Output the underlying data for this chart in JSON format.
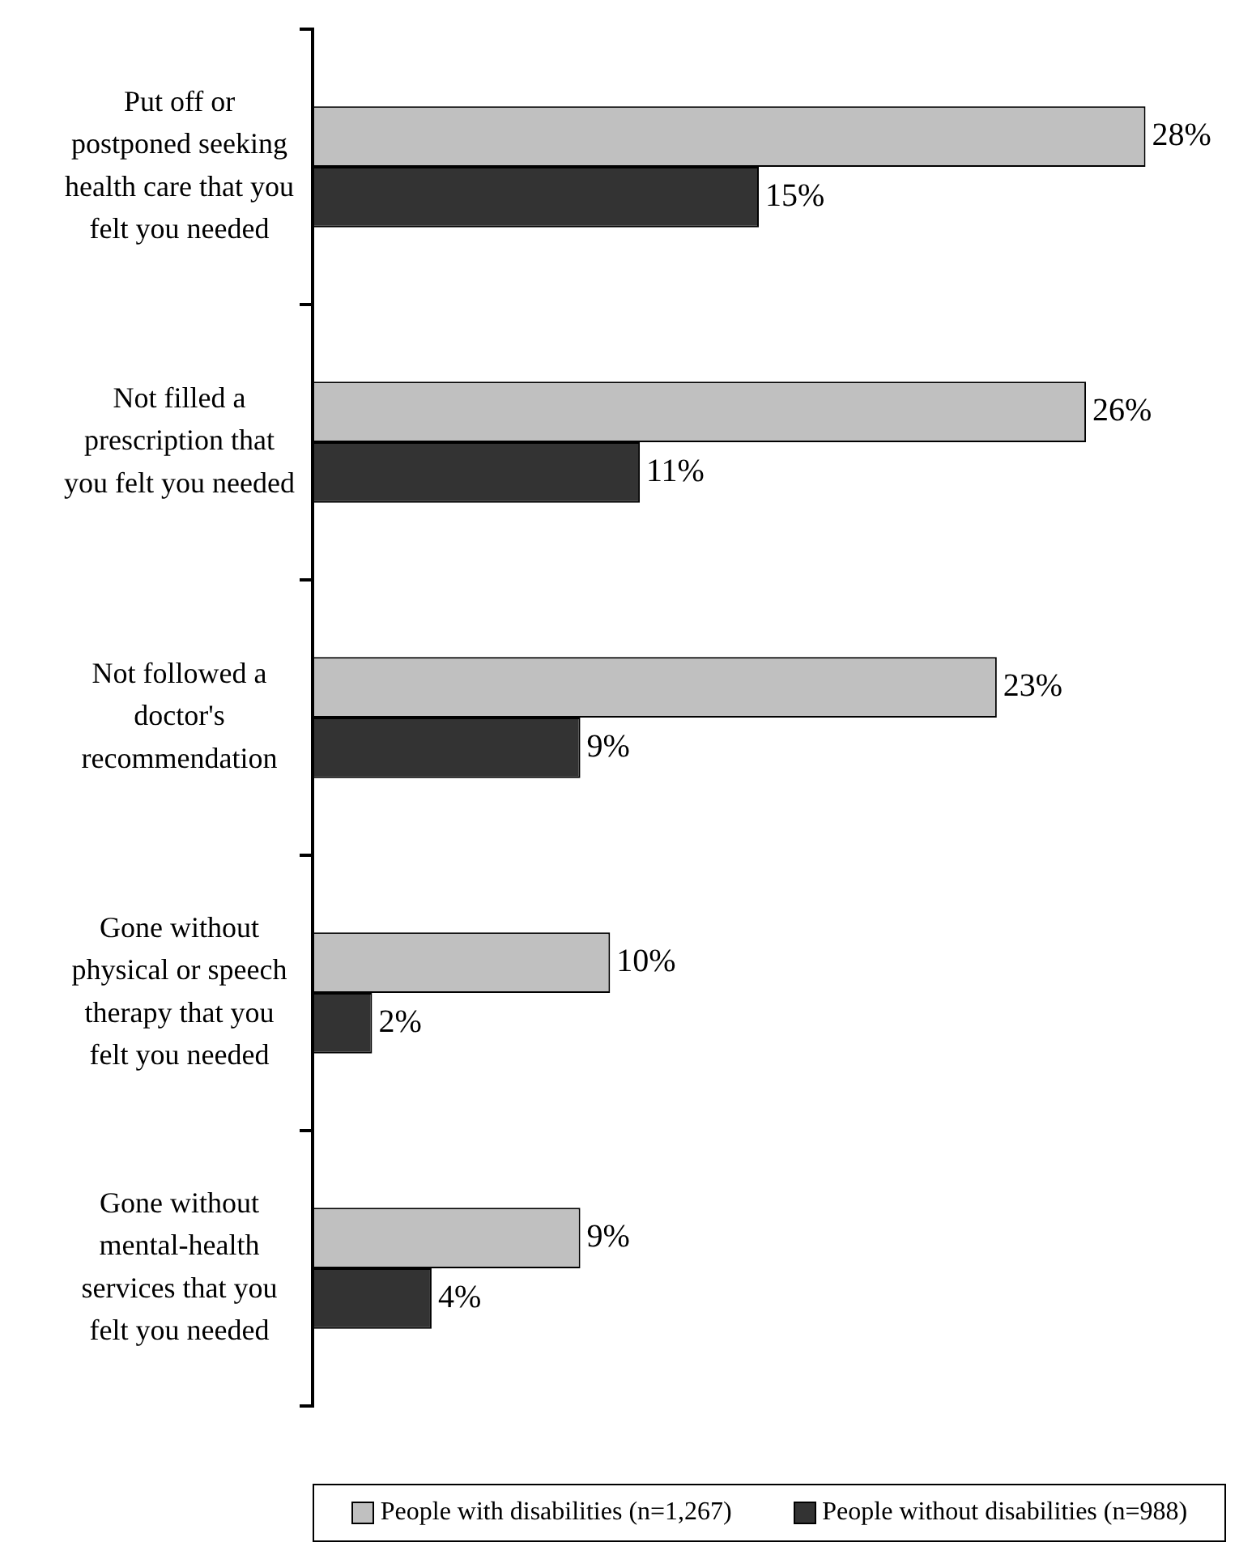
{
  "chart_data": {
    "type": "bar",
    "orientation": "horizontal",
    "categories": [
      "Put off or postponed seeking health care that you felt you needed",
      "Not filled a prescription that you felt you needed",
      "Not followed a doctor's recommendation",
      "Gone without physical or speech therapy that you felt you needed",
      "Gone without mental-health services that you felt you needed"
    ],
    "series": [
      {
        "name": "People with disabilities (n=1,267)",
        "color": "#c0c0c0",
        "values": [
          28,
          26,
          23,
          10,
          9
        ],
        "value_labels": [
          "28%",
          "26%",
          "23%",
          "10%",
          "9%"
        ]
      },
      {
        "name": "People without disabilities (n=988)",
        "color": "#333333",
        "values": [
          15,
          11,
          9,
          2,
          4
        ],
        "value_labels": [
          "15%",
          "11%",
          "9%",
          "2%",
          "4%"
        ]
      }
    ],
    "legend": "bottom",
    "grid": false
  }
}
